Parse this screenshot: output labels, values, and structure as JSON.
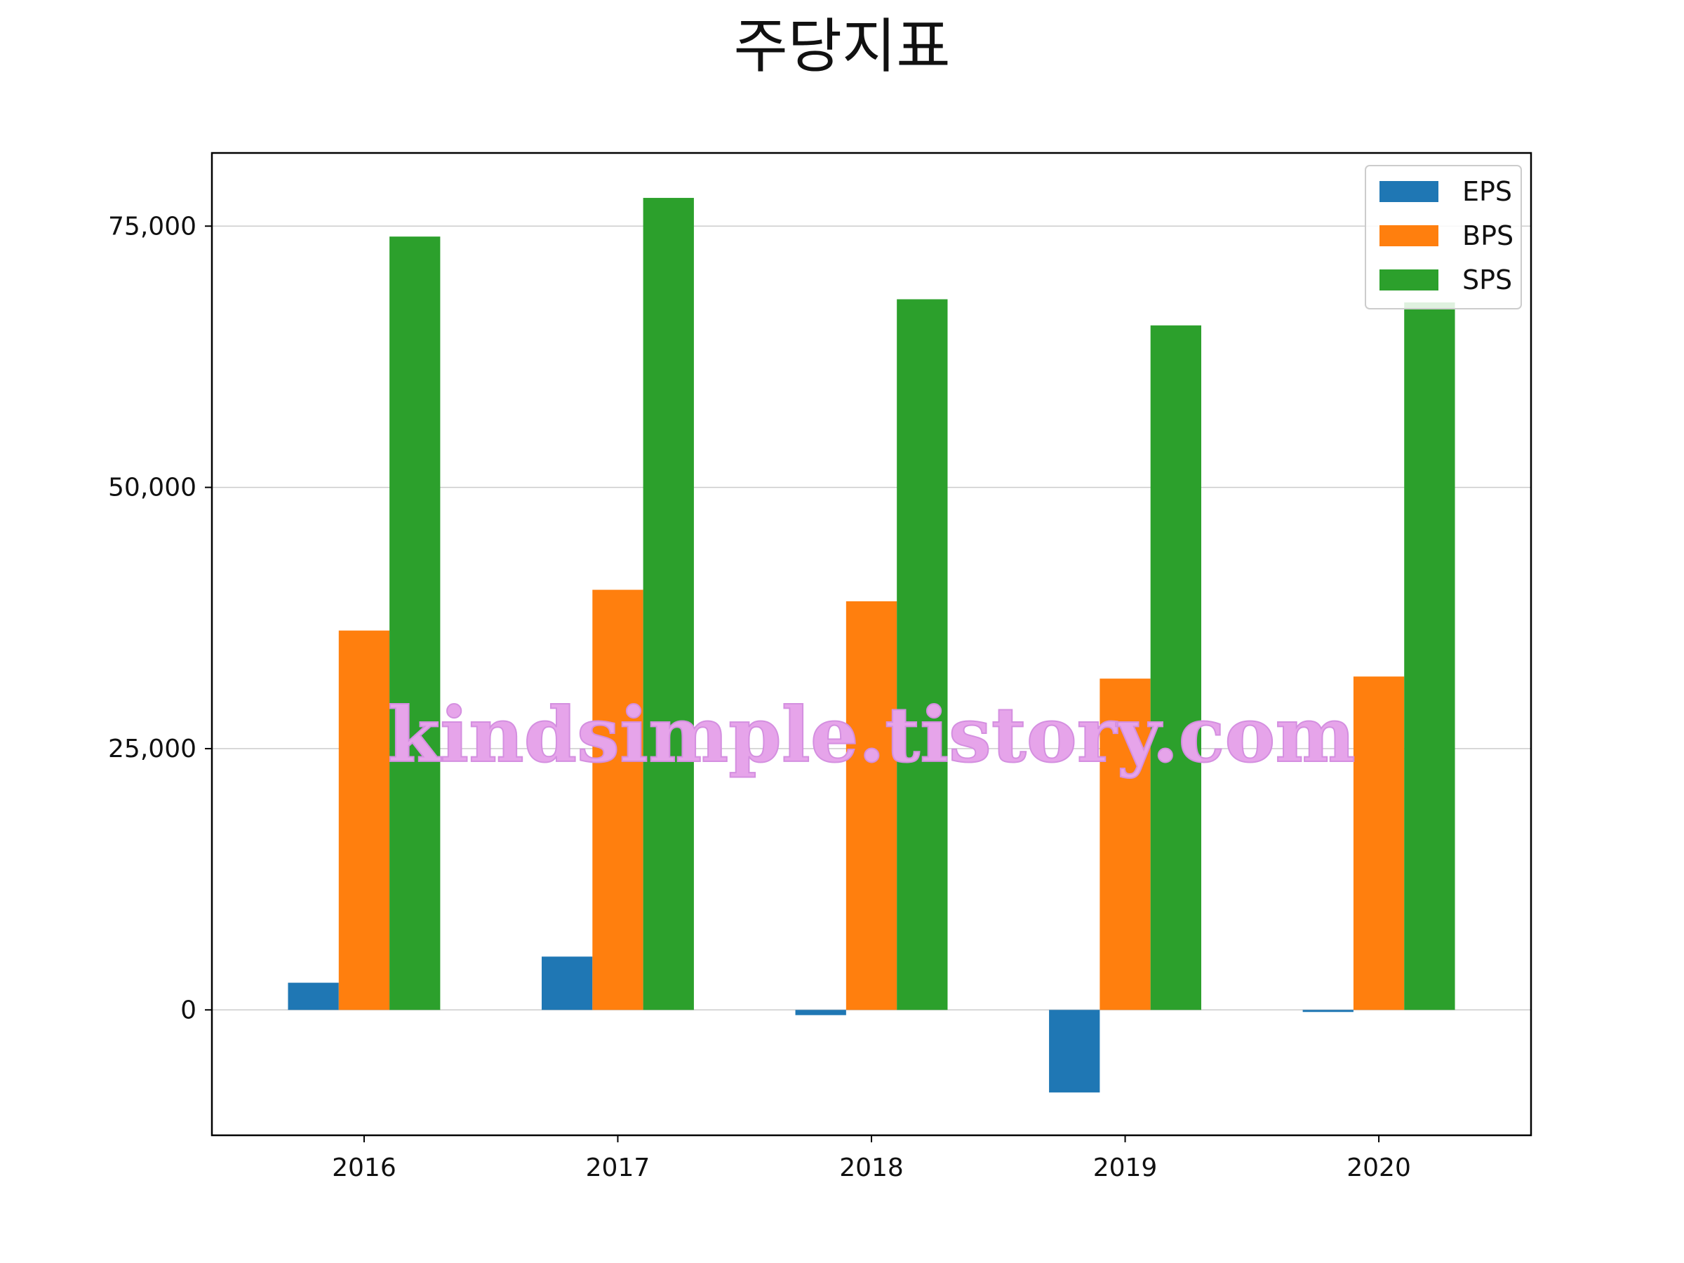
{
  "chart_data": {
    "type": "bar",
    "title": "주당지표",
    "xlabel": "",
    "ylabel": "",
    "categories": [
      "2016",
      "2017",
      "2018",
      "2019",
      "2020"
    ],
    "series": [
      {
        "name": "EPS",
        "color": "#1f77b4",
        "values": [
          2600,
          5100,
          -500,
          -7900,
          -200
        ]
      },
      {
        "name": "BPS",
        "color": "#ff7f0e",
        "values": [
          36300,
          40200,
          39100,
          31700,
          31900
        ]
      },
      {
        "name": "SPS",
        "color": "#2ca02c",
        "values": [
          74000,
          77700,
          68000,
          65500,
          67700
        ]
      }
    ],
    "ylim": [
      -12000,
      82000
    ],
    "yticks": [
      0,
      25000,
      50000,
      75000
    ],
    "ytick_labels": [
      "0",
      "25,000",
      "50,000",
      "75,000"
    ],
    "grid": "horizontal",
    "legend_position": "top-right",
    "watermark": "kindsimple.tistory.com"
  }
}
